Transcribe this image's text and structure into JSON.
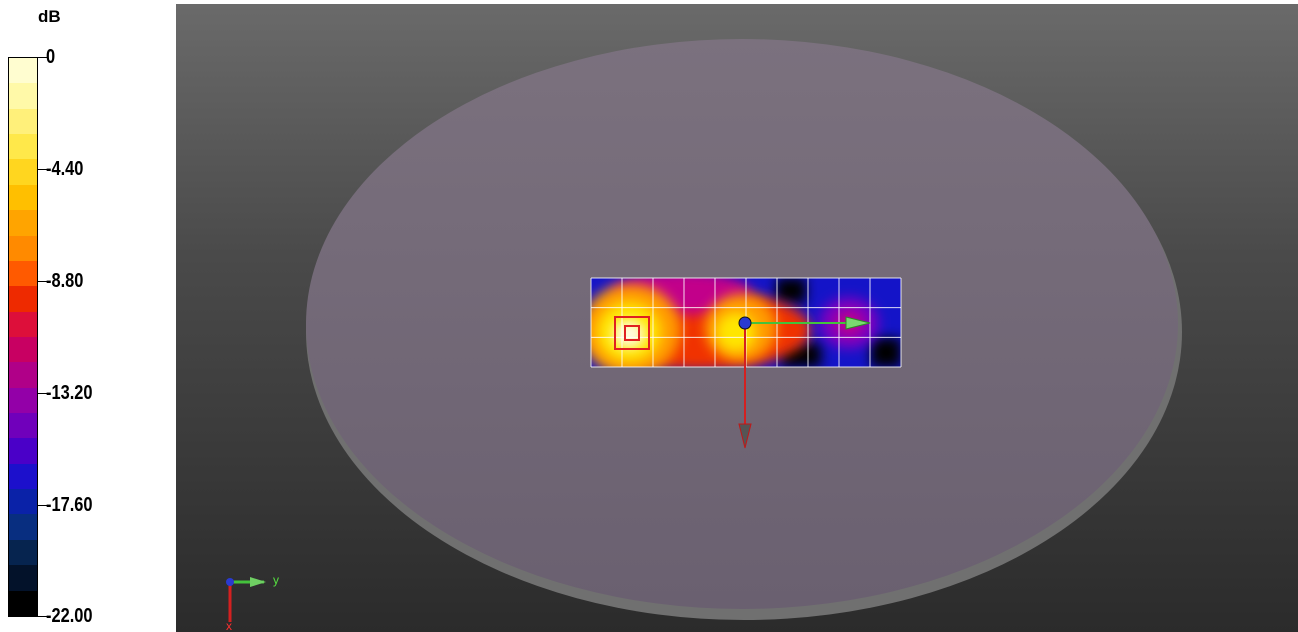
{
  "legend": {
    "unit": "dB",
    "labels": [
      "0",
      "-4.40",
      "-8.80",
      "-13.20",
      "-17.60",
      "-22.00"
    ],
    "bands": [
      "#fffdd0",
      "#fff9a8",
      "#fff07a",
      "#ffe84a",
      "#ffd61f",
      "#ffbf00",
      "#ffa400",
      "#ff8a00",
      "#ff5a00",
      "#ee2a00",
      "#dd0f3a",
      "#c80062",
      "#b00088",
      "#9300a8",
      "#7000bb",
      "#4a00c8",
      "#1c10cc",
      "#0a22a8",
      "#082e80",
      "#06244f",
      "#03122a",
      "#000000"
    ]
  },
  "scene": {
    "heatmap": {
      "cols": 10,
      "rows": 3,
      "colors": {
        "bright": "#fffde0",
        "yellow": "#ffe600",
        "orange": "#ff9a00",
        "red": "#f03000",
        "magenta": "#c2008a",
        "purple": "#7a00c0",
        "blue": "#1414c8",
        "dark": "#000000"
      }
    },
    "axis_triad": {
      "y_label": "y",
      "x_label": "x"
    },
    "colors": {
      "disc_fill": "#756a78",
      "disc_rim": "#6a6a6a",
      "grid_lines": "#ffffff",
      "arrow_y": "#44c23c",
      "arrow_x": "#d42020",
      "origin_ball": "#2a3ad0",
      "marker": "#e02020"
    }
  }
}
